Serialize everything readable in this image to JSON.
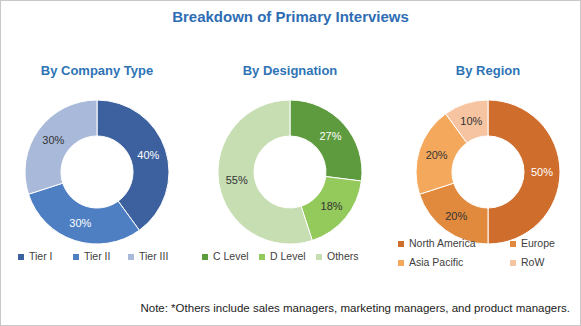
{
  "title": "Breakdown of Primary Interviews",
  "note": "Note: *Others include sales managers, marketing managers, and product managers.",
  "chart_data": [
    {
      "type": "pie",
      "title": "By Company Type",
      "categories": [
        "Tier I",
        "Tier II",
        "Tier III"
      ],
      "values": [
        40,
        30,
        30
      ],
      "value_labels": [
        "40%",
        "30%",
        "30%"
      ],
      "colors": [
        "#3c619e",
        "#4f7fc3",
        "#a9b9da"
      ],
      "data_labels": true
    },
    {
      "type": "pie",
      "title": "By Designation",
      "categories": [
        "C Level",
        "D Level",
        "Others"
      ],
      "values": [
        27,
        18,
        55
      ],
      "value_labels": [
        "27%",
        "18%",
        "55%"
      ],
      "colors": [
        "#5e9a3e",
        "#94c95c",
        "#c7ddb2"
      ],
      "data_labels": true
    },
    {
      "type": "pie",
      "title": "By Region",
      "categories": [
        "North America",
        "Europe",
        "Asia Pacific",
        "RoW"
      ],
      "values": [
        50,
        20,
        20,
        10
      ],
      "value_labels": [
        "50%",
        "20%",
        "20%",
        "10%"
      ],
      "colors": [
        "#cf6d2c",
        "#e18a3e",
        "#f4a85c",
        "#f7c4a2"
      ],
      "data_labels": true
    }
  ]
}
